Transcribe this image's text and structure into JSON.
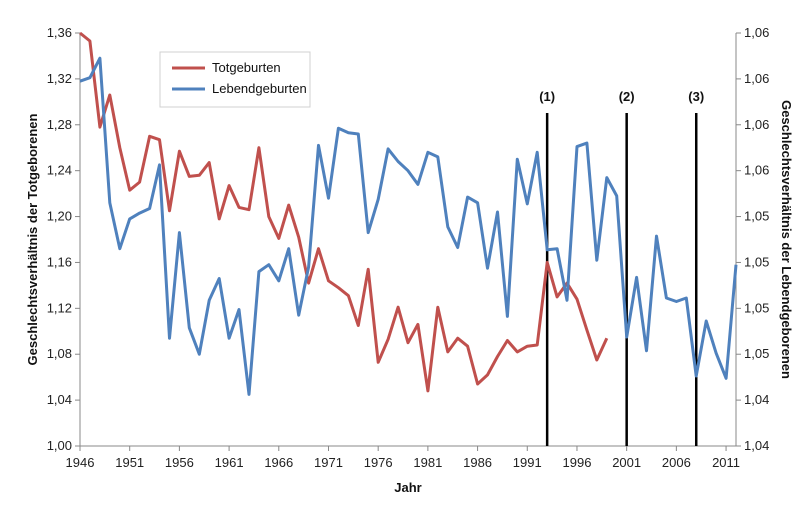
{
  "chart_data": {
    "type": "line",
    "xlabel": "Jahr",
    "ylabel_left": "Geschlechtsverhältnis der Totgeborenen",
    "ylabel_right": "Geschlechtsverhältnis der Lebendgeborenen",
    "xlim": [
      1946,
      2012
    ],
    "x_ticks": [
      1946,
      1951,
      1956,
      1961,
      1966,
      1971,
      1976,
      1981,
      1986,
      1991,
      1996,
      2001,
      2006,
      2011
    ],
    "ylim_left": [
      1.0,
      1.36
    ],
    "y_ticks_left": [
      "1,00",
      "1,04",
      "1,08",
      "1,12",
      "1,16",
      "1,20",
      "1,24",
      "1,28",
      "1,32",
      "1,36"
    ],
    "y_ticks_right": [
      "1,04",
      "1,04",
      "1,05",
      "1,05",
      "1,05",
      "1,05",
      "1,06",
      "1,06",
      "1,06",
      "1,06"
    ],
    "legend": {
      "position": "top-left",
      "entries": [
        "Totgeburten",
        "Lebendgeburten"
      ]
    },
    "grid": false,
    "colors": {
      "totgeburten": "#c0504d",
      "lebendgeburten": "#4f81bd",
      "marker": "#000000"
    },
    "markers": [
      {
        "label": "(1)",
        "x": 1993
      },
      {
        "label": "(2)",
        "x": 2001
      },
      {
        "label": "(3)",
        "x": 2008
      }
    ],
    "series": [
      {
        "name": "Totgeburten",
        "axis": "left",
        "x": [
          1946,
          1947,
          1948,
          1949,
          1950,
          1951,
          1952,
          1953,
          1954,
          1955,
          1956,
          1957,
          1958,
          1959,
          1960,
          1961,
          1962,
          1963,
          1964,
          1965,
          1966,
          1967,
          1968,
          1969,
          1970,
          1971,
          1972,
          1973,
          1974,
          1975,
          1976,
          1977,
          1978,
          1979,
          1980,
          1981,
          1982,
          1983,
          1984,
          1985,
          1986,
          1987,
          1988,
          1989,
          1990,
          1991,
          1992,
          1993,
          1994,
          1995,
          1996,
          1997,
          1998,
          1999
        ],
        "values": [
          1.36,
          1.353,
          1.278,
          1.306,
          1.26,
          1.223,
          1.23,
          1.27,
          1.267,
          1.205,
          1.257,
          1.235,
          1.236,
          1.247,
          1.198,
          1.227,
          1.208,
          1.206,
          1.26,
          1.2,
          1.181,
          1.21,
          1.182,
          1.142,
          1.172,
          1.144,
          1.138,
          1.131,
          1.105,
          1.154,
          1.073,
          1.093,
          1.121,
          1.09,
          1.106,
          1.048,
          1.121,
          1.082,
          1.094,
          1.087,
          1.054,
          1.062,
          1.078,
          1.092,
          1.082,
          1.087,
          1.088,
          1.16,
          1.13,
          1.142,
          1.128,
          1.101,
          1.075,
          1.094
        ]
      },
      {
        "name": "Lebendgeburten",
        "axis": "left",
        "x": [
          1946,
          1947,
          1948,
          1949,
          1950,
          1951,
          1952,
          1953,
          1954,
          1955,
          1956,
          1957,
          1958,
          1959,
          1960,
          1961,
          1962,
          1963,
          1964,
          1965,
          1966,
          1967,
          1968,
          1969,
          1970,
          1971,
          1972,
          1973,
          1974,
          1975,
          1976,
          1977,
          1978,
          1979,
          1980,
          1981,
          1982,
          1983,
          1984,
          1985,
          1986,
          1987,
          1988,
          1989,
          1990,
          1991,
          1992,
          1993,
          1994,
          1995,
          1996,
          1997,
          1998,
          1999,
          2000,
          2001,
          2002,
          2003,
          2004,
          2005,
          2006,
          2007,
          2008,
          2009,
          2010,
          2011,
          2012
        ],
        "values": [
          1.318,
          1.321,
          1.338,
          1.212,
          1.172,
          1.198,
          1.203,
          1.207,
          1.245,
          1.094,
          1.186,
          1.103,
          1.08,
          1.127,
          1.146,
          1.094,
          1.119,
          1.045,
          1.152,
          1.158,
          1.144,
          1.172,
          1.114,
          1.156,
          1.262,
          1.216,
          1.277,
          1.273,
          1.272,
          1.186,
          1.215,
          1.259,
          1.248,
          1.24,
          1.228,
          1.256,
          1.252,
          1.191,
          1.173,
          1.217,
          1.212,
          1.155,
          1.204,
          1.113,
          1.25,
          1.211,
          1.256,
          1.171,
          1.172,
          1.127,
          1.261,
          1.264,
          1.162,
          1.234,
          1.218,
          1.095,
          1.147,
          1.083,
          1.183,
          1.129,
          1.126,
          1.129,
          1.061,
          1.109,
          1.081,
          1.059,
          1.158
        ]
      }
    ]
  }
}
